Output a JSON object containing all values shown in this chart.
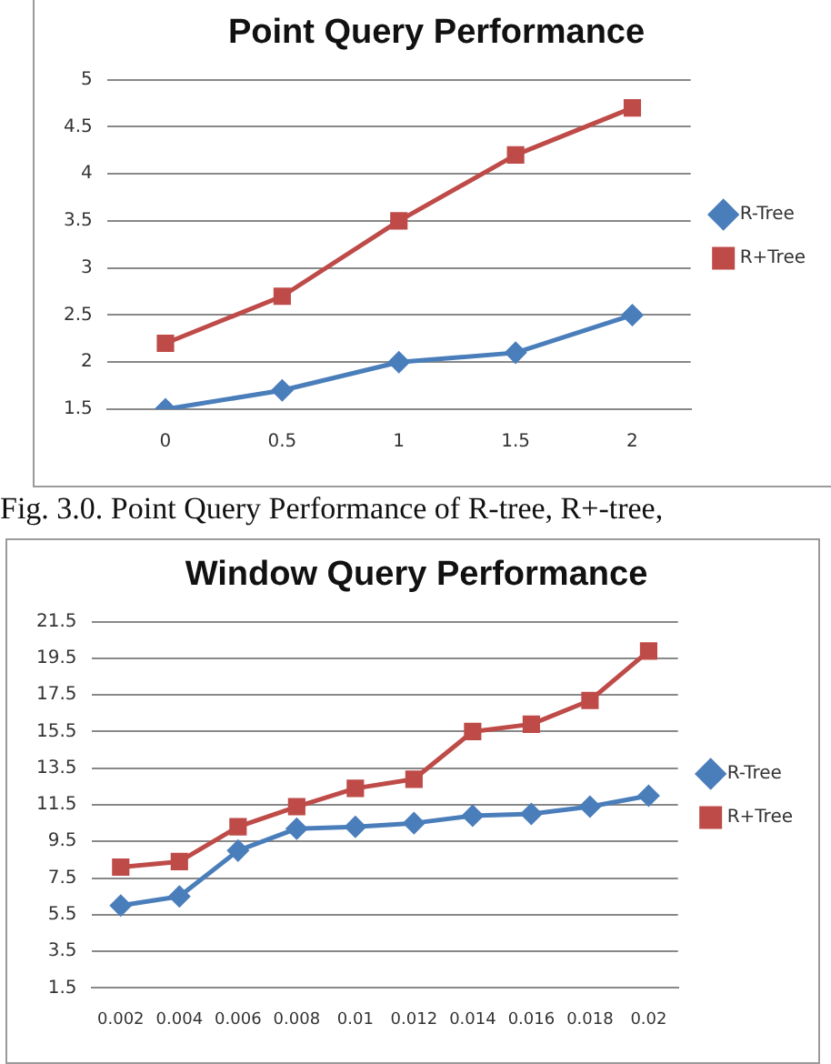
{
  "chart_data": [
    {
      "type": "line",
      "title": "Point Query Performance",
      "categories": [
        "0",
        "0.5",
        "1",
        "1.5",
        "2"
      ],
      "series": [
        {
          "name": "R-Tree",
          "color": "#4a7ebb",
          "marker": "diamond",
          "values": [
            1.5,
            1.7,
            2.0,
            2.1,
            2.5
          ]
        },
        {
          "name": "R+Tree",
          "color": "#be4b48",
          "marker": "square",
          "values": [
            2.2,
            2.7,
            3.5,
            4.2,
            4.7
          ]
        }
      ],
      "ylim": [
        1.5,
        5
      ],
      "yticks": [
        1.5,
        2,
        2.5,
        3,
        3.5,
        4,
        4.5,
        5
      ],
      "grid": "y",
      "legend": "right",
      "annotations": [
        "Fig.  3.0. Point Query Performance of R-tree, R+-tree,"
      ]
    },
    {
      "type": "line",
      "title": "Window Query Performance",
      "categories": [
        "0.002",
        "0.004",
        "0.006",
        "0.008",
        "0.01",
        "0.012",
        "0.014",
        "0.016",
        "0.018",
        "0.02"
      ],
      "series": [
        {
          "name": "R-Tree",
          "color": "#4a7ebb",
          "marker": "diamond",
          "values": [
            6.0,
            6.5,
            9.0,
            10.2,
            10.3,
            10.5,
            10.9,
            11.0,
            11.4,
            12.0
          ]
        },
        {
          "name": "R+Tree",
          "color": "#be4b48",
          "marker": "square",
          "values": [
            8.1,
            8.4,
            10.3,
            11.4,
            12.4,
            12.9,
            15.5,
            15.9,
            17.2,
            19.9
          ]
        }
      ],
      "ylim": [
        1.5,
        21.5
      ],
      "yticks": [
        1.5,
        3.5,
        5.5,
        7.5,
        9.5,
        11.5,
        13.5,
        15.5,
        17.5,
        19.5,
        21.5
      ],
      "grid": "y",
      "legend": "right"
    }
  ]
}
